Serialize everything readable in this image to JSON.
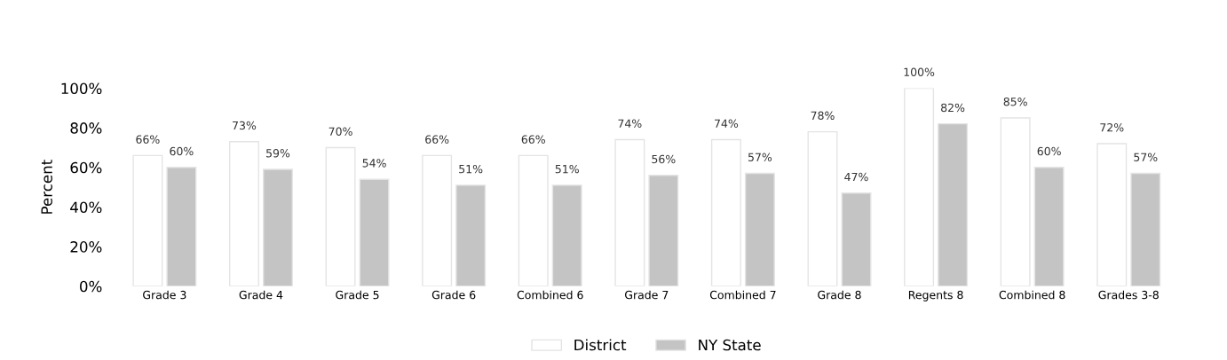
{
  "chart_data": {
    "type": "bar",
    "ylabel": "Percent",
    "categories": [
      "Grade 3",
      "Grade 4",
      "Grade 5",
      "Grade 6",
      "Combined 6",
      "Grade 7",
      "Combined 7",
      "Grade 8",
      "Regents 8",
      "Combined 8",
      "Grades 3-8"
    ],
    "series": [
      {
        "name": "District",
        "color": "#ffffff",
        "values": [
          66,
          73,
          70,
          66,
          66,
          74,
          74,
          78,
          100,
          85,
          72
        ],
        "value_labels": [
          "66%",
          "73%",
          "70%",
          "66%",
          "66%",
          "74%",
          "74%",
          "78%",
          "100%",
          "85%",
          "72%"
        ]
      },
      {
        "name": "NY State",
        "color": "#c4c4c4",
        "values": [
          60,
          59,
          54,
          51,
          51,
          56,
          57,
          47,
          82,
          60,
          57
        ],
        "value_labels": [
          "60%",
          "59%",
          "54%",
          "51%",
          "51%",
          "56%",
          "57%",
          "47%",
          "82%",
          "60%",
          "57%"
        ]
      }
    ],
    "ylim": [
      0,
      100
    ],
    "yticks": [
      {
        "value": 0,
        "label": "0%"
      },
      {
        "value": 20,
        "label": "20%"
      },
      {
        "value": 40,
        "label": "40%"
      },
      {
        "value": 60,
        "label": "60%"
      },
      {
        "value": 80,
        "label": "80%"
      },
      {
        "value": 100,
        "label": "100%"
      }
    ],
    "grid": false,
    "legend": "bottom"
  }
}
